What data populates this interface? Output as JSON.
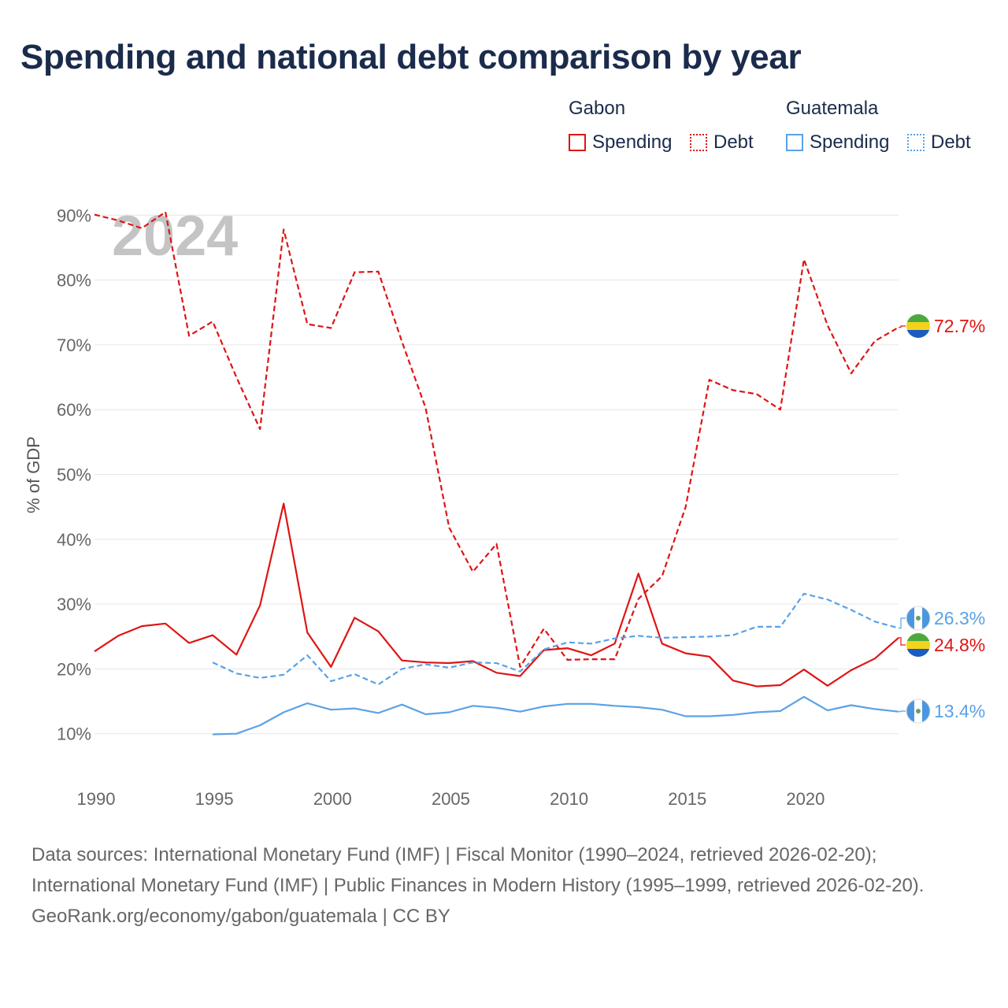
{
  "title": "Spending and national debt comparison by year",
  "legend": {
    "groups": [
      {
        "country": "Gabon",
        "spending_label": "Spending",
        "debt_label": "Debt",
        "color": "#e01414"
      },
      {
        "country": "Guatemala",
        "spending_label": "Spending",
        "debt_label": "Debt",
        "color": "#5aa2e6"
      }
    ]
  },
  "colors": {
    "gabon": "#e01414",
    "guatemala": "#5aa2e6",
    "grid": "#e6e6e6",
    "axis_text": "#666666",
    "year_watermark": "#c4c4c4"
  },
  "chart_data": {
    "type": "line",
    "title": "Spending and national debt comparison by year",
    "year_watermark": "2024",
    "ylabel": "% of GDP",
    "xlabel": "",
    "xlim": [
      1990,
      2024
    ],
    "ylim": [
      0,
      90
    ],
    "y_ticks": [
      10,
      20,
      30,
      40,
      50,
      60,
      70,
      80,
      90
    ],
    "y_tick_labels": [
      "10%",
      "20%",
      "30%",
      "40%",
      "50%",
      "60%",
      "70%",
      "80%",
      "90%"
    ],
    "x_ticks": [
      1990,
      1995,
      2000,
      2005,
      2010,
      2015,
      2020
    ],
    "x_tick_labels": [
      "1990",
      "1995",
      "2000",
      "2005",
      "2010",
      "2015",
      "2020"
    ],
    "grid": true,
    "series": [
      {
        "name": "Gabon Debt",
        "country": "Gabon",
        "metric": "Debt",
        "style": "dashed",
        "color": "#e01414",
        "x": [
          1990,
          1991,
          1992,
          1993,
          1994,
          1995,
          1996,
          1997,
          1998,
          1999,
          2000,
          2001,
          2002,
          2003,
          2004,
          2005,
          2006,
          2007,
          2008,
          2009,
          2010,
          2011,
          2012,
          2013,
          2014,
          2015,
          2016,
          2017,
          2018,
          2019,
          2020,
          2021,
          2022,
          2023,
          2024
        ],
        "values": [
          90.1,
          89.2,
          88.0,
          90.5,
          71.4,
          73.6,
          65.0,
          57.0,
          87.8,
          73.2,
          72.6,
          81.2,
          81.3,
          70.5,
          60.3,
          41.8,
          35.0,
          39.3,
          20.3,
          26.2,
          21.4,
          21.5,
          21.5,
          30.8,
          34.3,
          45.0,
          64.6,
          63.0,
          62.4,
          60.0,
          83.2,
          73.0,
          65.6,
          70.6,
          72.7
        ],
        "end_label": "72.7%"
      },
      {
        "name": "Gabon Spending",
        "country": "Gabon",
        "metric": "Spending",
        "style": "solid",
        "color": "#e01414",
        "x": [
          1990,
          1991,
          1992,
          1993,
          1994,
          1995,
          1996,
          1997,
          1998,
          1999,
          2000,
          2001,
          2002,
          2003,
          2004,
          2005,
          2006,
          2007,
          2008,
          2009,
          2010,
          2011,
          2012,
          2013,
          2014,
          2015,
          2016,
          2017,
          2018,
          2019,
          2020,
          2021,
          2022,
          2023,
          2024
        ],
        "values": [
          22.7,
          25.1,
          26.6,
          27.0,
          24.0,
          25.2,
          22.2,
          29.8,
          45.5,
          25.6,
          20.3,
          27.9,
          25.8,
          21.3,
          21.0,
          20.9,
          21.2,
          19.4,
          18.9,
          22.9,
          23.2,
          22.1,
          23.9,
          34.7,
          23.9,
          22.4,
          21.9,
          18.2,
          17.3,
          17.5,
          19.9,
          17.4,
          19.8,
          21.6,
          24.8
        ],
        "end_label": "24.8%"
      },
      {
        "name": "Guatemala Debt",
        "country": "Guatemala",
        "metric": "Debt",
        "style": "dashed",
        "color": "#5aa2e6",
        "x": [
          1995,
          1996,
          1997,
          1998,
          1999,
          2000,
          2001,
          2002,
          2003,
          2004,
          2005,
          2006,
          2007,
          2008,
          2009,
          2010,
          2011,
          2012,
          2013,
          2014,
          2015,
          2016,
          2017,
          2018,
          2019,
          2020,
          2021,
          2022,
          2023,
          2024
        ],
        "values": [
          21.0,
          19.3,
          18.6,
          19.1,
          22.1,
          18.1,
          19.2,
          17.6,
          20.0,
          20.7,
          20.2,
          21.0,
          20.9,
          19.6,
          23.0,
          24.1,
          23.9,
          24.7,
          25.1,
          24.8,
          24.9,
          25.0,
          25.2,
          26.5,
          26.5,
          31.6,
          30.7,
          29.1,
          27.3,
          26.3
        ],
        "end_label": "26.3%"
      },
      {
        "name": "Guatemala Spending",
        "country": "Guatemala",
        "metric": "Spending",
        "style": "solid",
        "color": "#5aa2e6",
        "x": [
          1995,
          1996,
          1997,
          1998,
          1999,
          2000,
          2001,
          2002,
          2003,
          2004,
          2005,
          2006,
          2007,
          2008,
          2009,
          2010,
          2011,
          2012,
          2013,
          2014,
          2015,
          2016,
          2017,
          2018,
          2019,
          2020,
          2021,
          2022,
          2023,
          2024
        ],
        "values": [
          9.9,
          10.0,
          11.3,
          13.3,
          14.7,
          13.7,
          13.9,
          13.2,
          14.5,
          13.0,
          13.3,
          14.3,
          14.0,
          13.4,
          14.2,
          14.6,
          14.6,
          14.3,
          14.1,
          13.7,
          12.7,
          12.7,
          12.9,
          13.3,
          13.5,
          15.7,
          13.6,
          14.4,
          13.8,
          13.4
        ],
        "end_label": "13.4%"
      }
    ]
  },
  "sources": {
    "line1": "Data sources: International Monetary Fund (IMF) | Fiscal Monitor (1990–2024, retrieved 2026-02-20); International Monetary Fund (IMF) | Public Finances in Modern History (1995–1999, retrieved 2026-02-20).",
    "line2": "GeoRank.org/economy/gabon/guatemala | CC BY"
  }
}
